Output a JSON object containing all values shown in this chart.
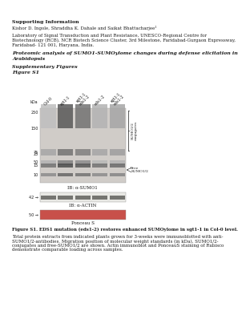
{
  "title_bold": "Supporting Information",
  "authors": "Kishor D. Ingole, Shraddha K. Dahale and Saikat Bhattacharjee¹",
  "affiliation_line1": "Laboratory of Signal Transduction and Plant Resistance, UNESCO-Regional Centre for",
  "affiliation_line2": "Biotechnology (RCB), NCR Biotech Science Cluster, 3rd Milestone, Faridabad-Gurgaon Expressway,",
  "affiliation_line3": "Faridabad- 121 001, Haryana, India.",
  "section_title_line1": "Proteomic analysis of SUMO1-SUMOylome changes during defense elicitation in",
  "section_title_line2": "Arabidopsis",
  "supp_figures": "Supplementary Figures",
  "figure_label": "Figure S1",
  "figure_caption_bold": "Figure S1. EDS1 mutation (eds1-2) restores enhanced SUMOylome in sgt1-1 in Col-0 level.",
  "ib_sumo1": "IB: α-SUMO1",
  "ib_actin": "IB: α-ACTIN",
  "ponceau": "Ponceau S",
  "bg_color": "#ffffff",
  "blot_bg": "#d0ccc8",
  "ponceau_color": "#c8504a",
  "text_color": "#1a1a1a",
  "lane_labels": [
    "Col-0",
    "sgt1-1",
    "sgt1-1\neds1-2",
    "eds1-2",
    "sgt1-1\neds1-2"
  ],
  "kda_labels": [
    "250",
    "150",
    "75",
    "50",
    "25",
    "15",
    "10"
  ],
  "caption_lines": [
    "Total protein extracts from indicated plants grown for 3-weeks were immunoblotted with anti-",
    "SUMO1/2-antibodies. Migration position of molecular weight standards (in kDa), SUMO1/2-",
    "conjugates and free-SUMO1/2 are shown. Actin immunoblot and PonceauS staining of Rubisco",
    "demonstrate comparable loading across samples."
  ]
}
